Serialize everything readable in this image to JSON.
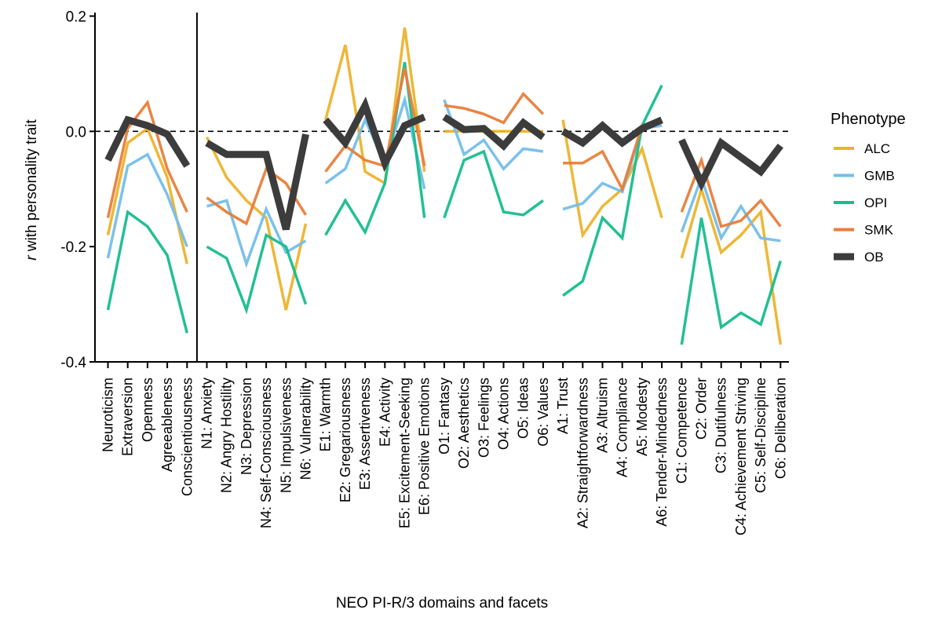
{
  "chart_data": {
    "type": "line",
    "title": "",
    "xlabel": "NEO PI-R/3 domains and facets",
    "ylabel_italic": "r",
    "ylabel_rest": " with personality trait",
    "ylim": [
      -0.4,
      0.2
    ],
    "yticks": [
      0.2,
      0.0,
      -0.2,
      -0.4
    ],
    "ytick_labels": [
      "0.2",
      "0.0",
      "-0.2",
      "-0.4"
    ],
    "reference_line": 0.0,
    "separator_after": "Conscientiousness",
    "categories": [
      "Neuroticism",
      "Extraversion",
      "Openness",
      "Agreeableness",
      "Conscientiousness",
      "N1: Anxiety",
      "N2: Angry Hostility",
      "N3: Depression",
      "N4: Self-Consciousness",
      "N5: Impulsiveness",
      "N6: Vulnerability",
      "E1: Warmth",
      "E2: Gregariousness",
      "E3: Assertiveness",
      "E4: Activity",
      "E5: Excitement-Seeking",
      "E6: Positive Emotions",
      "O1: Fantasy",
      "O2: Aesthetics",
      "O3: Feelings",
      "O4: Actions",
      "O5: Ideas",
      "O6: Values",
      "A1: Trust",
      "A2: Straightforwardness",
      "A3: Altruism",
      "A4: Compliance",
      "A5: Modesty",
      "A6: Tender-Mindedness",
      "C1: Competence",
      "C2: Order",
      "C3: Dutifulness",
      "C4: Achievement Striving",
      "C5: Self-Discipline",
      "C6: Deliberation"
    ],
    "groups": [
      [
        0,
        4
      ],
      [
        5,
        10
      ],
      [
        11,
        16
      ],
      [
        17,
        22
      ],
      [
        23,
        28
      ],
      [
        29,
        34
      ]
    ],
    "legend": {
      "title": "Phenotype",
      "placement": "right"
    },
    "series": [
      {
        "name": "ALC",
        "color": "#EDB32B",
        "width": 3.5,
        "values": [
          -0.18,
          -0.02,
          0.005,
          -0.08,
          -0.23,
          -0.01,
          -0.08,
          -0.12,
          -0.15,
          -0.31,
          -0.16,
          0.02,
          0.15,
          -0.07,
          -0.09,
          0.18,
          -0.07,
          0.0,
          0.0,
          0.0,
          0.0,
          0.0,
          0.0,
          0.02,
          -0.18,
          -0.13,
          -0.1,
          -0.03,
          -0.15,
          -0.22,
          -0.1,
          -0.21,
          -0.18,
          -0.14,
          -0.37
        ]
      },
      {
        "name": "GMB",
        "color": "#74BEEA",
        "width": 3.5,
        "values": [
          -0.22,
          -0.06,
          -0.04,
          -0.11,
          -0.2,
          -0.13,
          -0.12,
          -0.23,
          -0.135,
          -0.21,
          -0.19,
          -0.09,
          -0.065,
          0.02,
          -0.055,
          0.055,
          -0.1,
          0.055,
          -0.04,
          -0.015,
          -0.065,
          -0.03,
          -0.035,
          -0.135,
          -0.125,
          -0.09,
          -0.105,
          0.005,
          0.01,
          -0.175,
          -0.08,
          -0.185,
          -0.13,
          -0.185,
          -0.19
        ]
      },
      {
        "name": "OPI",
        "color": "#16BD8E",
        "width": 3.5,
        "values": [
          -0.31,
          -0.14,
          -0.165,
          -0.215,
          -0.35,
          -0.2,
          -0.22,
          -0.31,
          -0.18,
          -0.2,
          -0.3,
          -0.18,
          -0.12,
          -0.175,
          -0.09,
          0.12,
          -0.15,
          -0.15,
          -0.05,
          -0.035,
          -0.14,
          -0.145,
          -0.12,
          -0.285,
          -0.26,
          -0.15,
          -0.185,
          0.01,
          0.08,
          -0.37,
          -0.15,
          -0.34,
          -0.315,
          -0.335,
          -0.225
        ]
      },
      {
        "name": "SMK",
        "color": "#E87E3A",
        "width": 3.5,
        "values": [
          -0.15,
          0.005,
          0.05,
          -0.065,
          -0.14,
          -0.115,
          -0.14,
          -0.16,
          -0.065,
          -0.09,
          -0.145,
          -0.07,
          -0.025,
          -0.05,
          -0.06,
          0.11,
          -0.06,
          0.045,
          0.04,
          0.03,
          0.015,
          0.065,
          0.03,
          -0.055,
          -0.055,
          -0.035,
          -0.1,
          0.01,
          0.015,
          -0.14,
          -0.05,
          -0.165,
          -0.155,
          -0.12,
          -0.165
        ]
      },
      {
        "name": "OB",
        "color": "#3C3C3C",
        "width": 9,
        "values": [
          -0.05,
          0.02,
          0.01,
          -0.005,
          -0.06,
          -0.02,
          -0.04,
          -0.04,
          -0.04,
          -0.17,
          -0.005,
          0.02,
          -0.02,
          0.045,
          -0.055,
          0.01,
          0.025,
          0.025,
          0.003,
          0.005,
          -0.025,
          0.015,
          -0.01,
          0.0,
          -0.02,
          0.01,
          -0.02,
          0.005,
          0.02,
          -0.015,
          -0.09,
          -0.02,
          -0.045,
          -0.07,
          -0.025
        ]
      }
    ]
  }
}
